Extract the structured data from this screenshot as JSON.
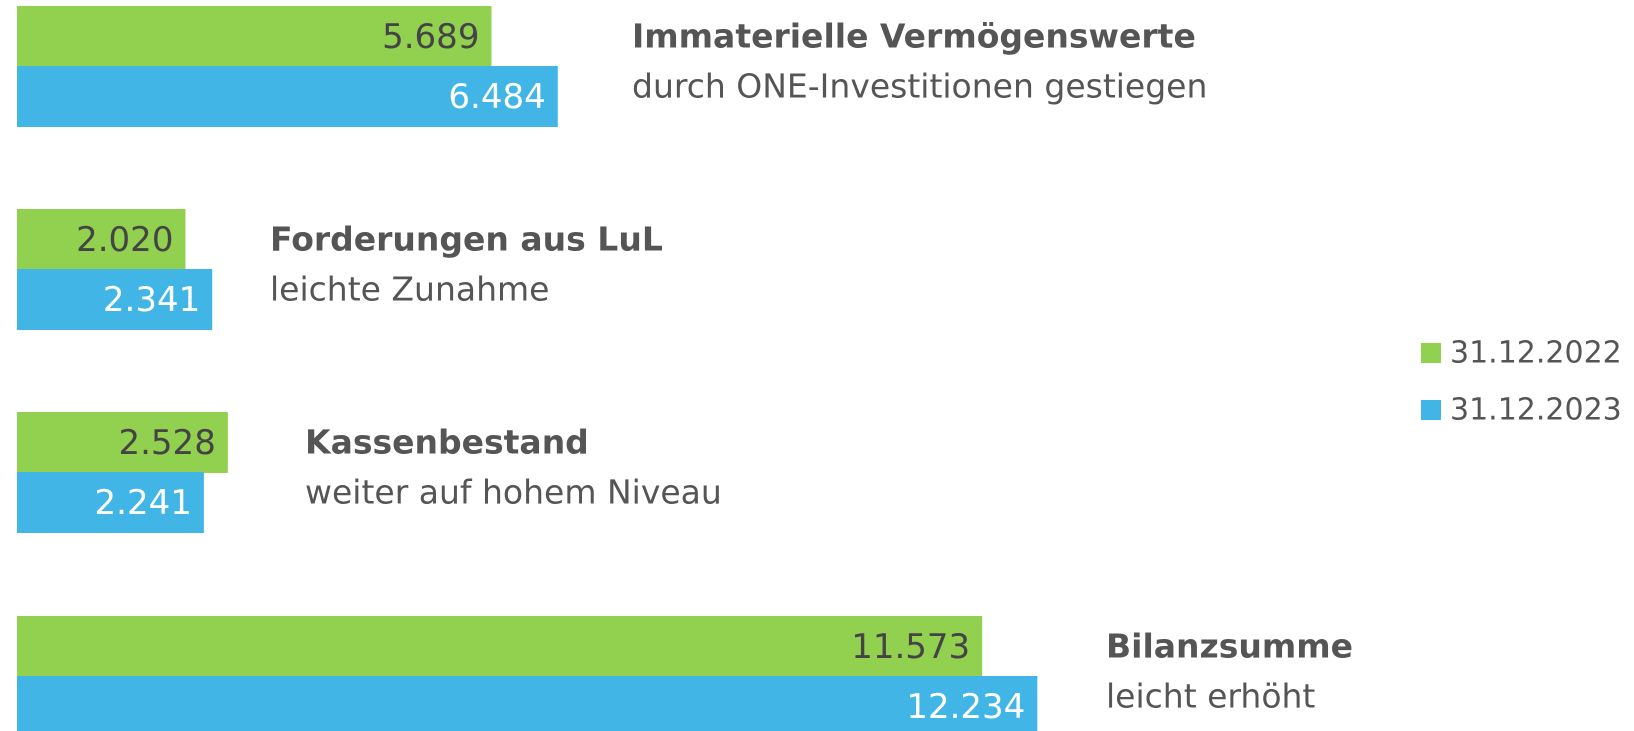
{
  "chart_data": {
    "type": "bar",
    "orientation": "horizontal",
    "categories": [
      "Immaterielle Vermögenswerte",
      "Forderungen aus LuL",
      "Kassenbestand",
      "Bilanzsumme"
    ],
    "subtitles": [
      "durch ONE-Investitionen gestiegen",
      "leichte Zunahme",
      "weiter auf hohem Niveau",
      "leicht erhöht"
    ],
    "series": [
      {
        "name": "31.12.2022",
        "color": "#92d050",
        "values": [
          5689,
          2020,
          2528,
          11573
        ],
        "value_labels": [
          "5.689",
          "2.020",
          "2.528",
          "11.573"
        ]
      },
      {
        "name": "31.12.2023",
        "color": "#41b6e6",
        "values": [
          6484,
          2341,
          2241,
          12234
        ],
        "value_labels": [
          "6.484",
          "2.341",
          "2.241",
          "12.234"
        ]
      }
    ],
    "legend": "right"
  }
}
